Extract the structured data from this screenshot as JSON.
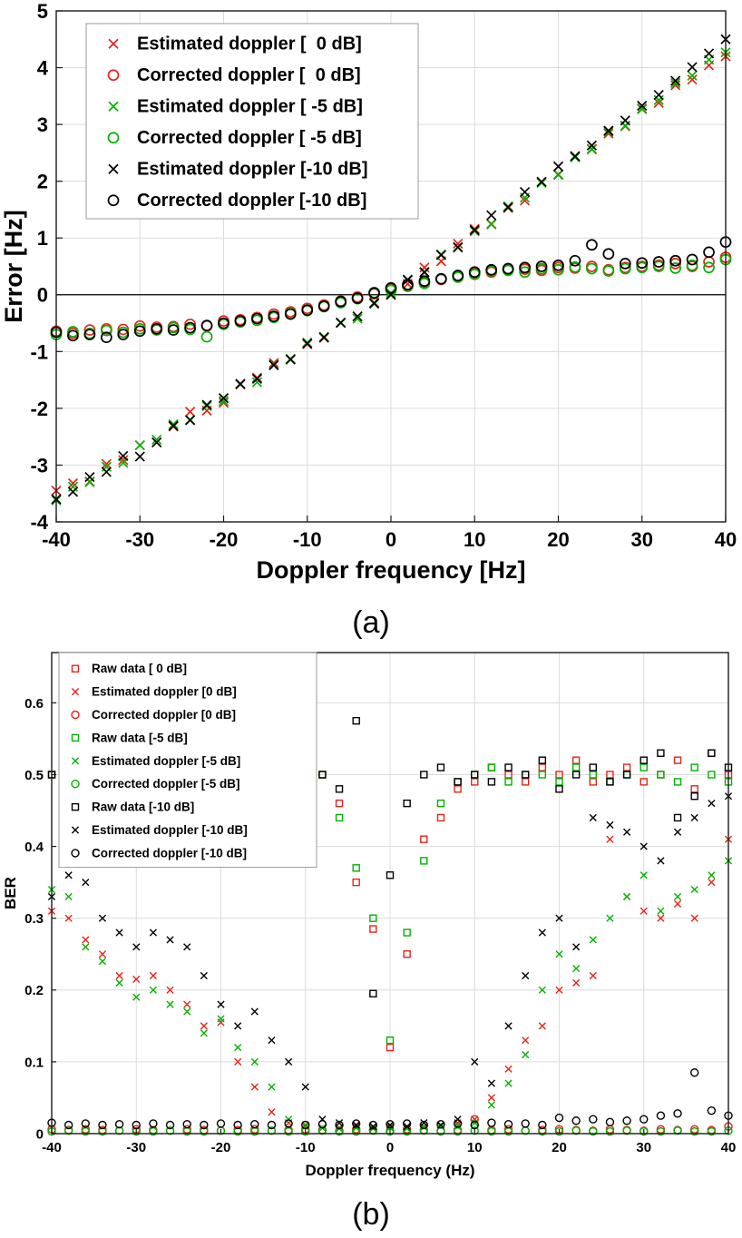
{
  "figure": {
    "caption_a": "(a)",
    "caption_b": "(b)"
  },
  "colors": {
    "red": "#e8231a",
    "green": "#00b300",
    "black": "#000000",
    "grid": "#dcdcdc"
  },
  "chart_data": [
    {
      "type": "scatter",
      "panel": "a",
      "title": "",
      "xlabel": "Doppler frequency [Hz]",
      "ylabel": "Error [Hz]",
      "xlim": [
        -40,
        40
      ],
      "ylim": [
        -4,
        5
      ],
      "xticks": [
        -40,
        -30,
        -20,
        -10,
        0,
        10,
        20,
        30,
        40
      ],
      "yticks": [
        5,
        4,
        3,
        2,
        1,
        0,
        -1,
        -2,
        -3,
        -4
      ],
      "grid": true,
      "zero_line": true,
      "legend_position": "top-left",
      "x": [
        -40,
        -38,
        -36,
        -34,
        -32,
        -30,
        -28,
        -26,
        -24,
        -22,
        -20,
        -18,
        -16,
        -14,
        -12,
        -10,
        -8,
        -6,
        -4,
        -2,
        0,
        2,
        4,
        6,
        8,
        10,
        12,
        14,
        16,
        18,
        20,
        22,
        24,
        26,
        28,
        30,
        32,
        34,
        36,
        38,
        40
      ],
      "series": [
        {
          "name": "Estimated doppler [  0 dB]",
          "color": "red",
          "marker": "x",
          "values": [
            -3.45,
            -3.32,
            -3.29,
            -2.98,
            -2.91,
            -2.65,
            -2.6,
            -2.32,
            -2.06,
            -2.04,
            -1.9,
            -1.58,
            -1.46,
            -1.2,
            -1.13,
            -0.87,
            -0.76,
            -0.49,
            -0.38,
            -0.14,
            0,
            0.19,
            0.48,
            0.59,
            0.9,
            1.16,
            1.25,
            1.53,
            1.66,
            1.99,
            2.12,
            2.44,
            2.57,
            2.84,
            2.97,
            3.28,
            3.38,
            3.69,
            3.79,
            4.04,
            4.2
          ]
        },
        {
          "name": "Corrected doppler [  0 dB]",
          "color": "red",
          "marker": "o",
          "values": [
            -0.64,
            -0.68,
            -0.62,
            -0.6,
            -0.61,
            -0.55,
            -0.57,
            -0.56,
            -0.52,
            -0.55,
            -0.46,
            -0.44,
            -0.4,
            -0.34,
            -0.3,
            -0.24,
            -0.18,
            -0.11,
            -0.04,
            0.02,
            0.1,
            0.15,
            0.22,
            0.27,
            0.33,
            0.38,
            0.4,
            0.44,
            0.45,
            0.43,
            0.48,
            0.47,
            0.5,
            0.44,
            0.48,
            0.5,
            0.52,
            0.55,
            0.5,
            0.58,
            0.66
          ]
        },
        {
          "name": "Estimated doppler [ -5 dB]",
          "color": "green",
          "marker": "x",
          "values": [
            -3.62,
            -3.38,
            -3.3,
            -3.03,
            -2.96,
            -2.65,
            -2.55,
            -2.28,
            -2.2,
            -1.96,
            -1.87,
            -1.57,
            -1.54,
            -1.23,
            -1.13,
            -0.84,
            -0.74,
            -0.5,
            -0.42,
            -0.16,
            0.03,
            0.27,
            0.39,
            0.71,
            0.83,
            1.12,
            1.24,
            1.56,
            1.71,
            1.97,
            2.11,
            2.42,
            2.56,
            2.87,
            2.98,
            3.27,
            3.43,
            3.73,
            3.86,
            4.14,
            4.27
          ]
        },
        {
          "name": "Corrected doppler [ -5 dB]",
          "color": "green",
          "marker": "o",
          "values": [
            -0.7,
            -0.65,
            -0.68,
            -0.63,
            -0.66,
            -0.6,
            -0.62,
            -0.58,
            -0.61,
            -0.74,
            -0.52,
            -0.48,
            -0.45,
            -0.4,
            -0.33,
            -0.28,
            -0.21,
            -0.14,
            -0.07,
            0.04,
            0.08,
            0.16,
            0.2,
            0.28,
            0.31,
            0.36,
            0.42,
            0.43,
            0.4,
            0.46,
            0.44,
            0.49,
            0.46,
            0.42,
            0.46,
            0.48,
            0.5,
            0.47,
            0.52,
            0.48,
            0.62
          ]
        },
        {
          "name": "Estimated doppler [-10 dB]",
          "color": "black",
          "marker": "x",
          "values": [
            -3.6,
            -3.47,
            -3.21,
            -3.12,
            -2.84,
            -2.85,
            -2.6,
            -2.31,
            -2.21,
            -1.94,
            -1.82,
            -1.57,
            -1.48,
            -1.24,
            -1.14,
            -0.86,
            -0.75,
            -0.49,
            -0.38,
            -0.15,
            0,
            0.26,
            0.4,
            0.7,
            0.84,
            1.14,
            1.4,
            1.54,
            1.81,
            1.99,
            2.26,
            2.44,
            2.63,
            2.89,
            3.07,
            3.33,
            3.52,
            3.77,
            4.01,
            4.25,
            4.5
          ]
        },
        {
          "name": "Corrected doppler [-10 dB]",
          "color": "black",
          "marker": "o",
          "values": [
            -0.66,
            -0.72,
            -0.7,
            -0.75,
            -0.7,
            -0.64,
            -0.6,
            -0.62,
            -0.58,
            -0.54,
            -0.5,
            -0.46,
            -0.42,
            -0.38,
            -0.34,
            -0.27,
            -0.2,
            -0.12,
            -0.06,
            0.03,
            0.12,
            0.18,
            0.24,
            0.28,
            0.34,
            0.4,
            0.44,
            0.46,
            0.48,
            0.5,
            0.52,
            0.6,
            0.88,
            0.72,
            0.55,
            0.56,
            0.58,
            0.6,
            0.62,
            0.75,
            0.93
          ]
        }
      ]
    },
    {
      "type": "scatter",
      "panel": "b",
      "title": "",
      "xlabel": "Doppler frequency (Hz)",
      "ylabel": "BER",
      "xlim": [
        -40,
        40
      ],
      "ylim": [
        0,
        0.67
      ],
      "xticks": [
        -40,
        -30,
        -20,
        -10,
        0,
        10,
        20,
        30,
        40
      ],
      "yticks": [
        0,
        0.1,
        0.2,
        0.3,
        0.4,
        0.5,
        0.6
      ],
      "grid": true,
      "zero_line": false,
      "legend_position": "top-left",
      "x": [
        -40,
        -38,
        -36,
        -34,
        -32,
        -30,
        -28,
        -26,
        -24,
        -22,
        -20,
        -18,
        -16,
        -14,
        -12,
        -10,
        -8,
        -6,
        -4,
        -2,
        0,
        2,
        4,
        6,
        8,
        10,
        12,
        14,
        16,
        18,
        20,
        22,
        24,
        26,
        28,
        30,
        32,
        34,
        36,
        38,
        40
      ],
      "series": [
        {
          "name": "Raw data [ 0 dB]",
          "color": "red",
          "marker": "square",
          "values": [
            0.5,
            0.51,
            0.49,
            0.5,
            0.52,
            0.5,
            0.49,
            0.51,
            0.5,
            0.5,
            0.52,
            0.49,
            0.5,
            0.51,
            0.5,
            0.51,
            0.5,
            0.46,
            0.35,
            0.285,
            0.12,
            0.25,
            0.41,
            0.44,
            0.48,
            0.49,
            0.51,
            0.5,
            0.49,
            0.51,
            0.5,
            0.52,
            0.49,
            0.5,
            0.51,
            0.49,
            0.5,
            0.52,
            0.48,
            0.53,
            0.5
          ]
        },
        {
          "name": "Estimated doppler [0 dB]",
          "color": "red",
          "marker": "x",
          "values": [
            0.31,
            0.3,
            0.27,
            0.25,
            0.22,
            0.215,
            0.22,
            0.2,
            0.18,
            0.15,
            0.155,
            0.1,
            0.065,
            0.03,
            0.015,
            0.01,
            0.008,
            0.008,
            0.01,
            0.008,
            0.01,
            0.008,
            0.01,
            0.012,
            0.015,
            0.02,
            0.05,
            0.09,
            0.13,
            0.15,
            0.2,
            0.21,
            0.22,
            0.41,
            0.33,
            0.31,
            0.3,
            0.32,
            0.3,
            0.35,
            0.41
          ]
        },
        {
          "name": "Corrected doppler [0 dB]",
          "color": "red",
          "marker": "o",
          "values": [
            0.006,
            0.005,
            0.006,
            0.005,
            0.004,
            0.006,
            0.005,
            0.004,
            0.006,
            0.005,
            0.004,
            0.005,
            0.006,
            0.004,
            0.005,
            0.006,
            0.005,
            0.004,
            0.006,
            0.005,
            0.004,
            0.006,
            0.005,
            0.004,
            0.005,
            0.02,
            0.005,
            0.006,
            0.004,
            0.005,
            0.006,
            0.005,
            0.004,
            0.006,
            0.005,
            0.004,
            0.006,
            0.005,
            0.006,
            0.005,
            0.01
          ]
        },
        {
          "name": "Raw data [-5 dB]",
          "color": "green",
          "marker": "square",
          "values": [
            0.5,
            0.49,
            0.51,
            0.5,
            0.49,
            0.52,
            0.5,
            0.51,
            0.49,
            0.5,
            0.51,
            0.5,
            0.49,
            0.5,
            0.51,
            0.49,
            0.5,
            0.44,
            0.37,
            0.3,
            0.13,
            0.28,
            0.38,
            0.46,
            0.49,
            0.5,
            0.51,
            0.49,
            0.5,
            0.5,
            0.49,
            0.51,
            0.5,
            0.49,
            0.5,
            0.51,
            0.5,
            0.49,
            0.51,
            0.5,
            0.49
          ]
        },
        {
          "name": "Estimated doppler [-5 dB]",
          "color": "green",
          "marker": "x",
          "values": [
            0.34,
            0.33,
            0.26,
            0.24,
            0.21,
            0.19,
            0.2,
            0.18,
            0.17,
            0.14,
            0.16,
            0.12,
            0.1,
            0.065,
            0.02,
            0.012,
            0.008,
            0.007,
            0.008,
            0.007,
            0.008,
            0.007,
            0.009,
            0.01,
            0.012,
            0.015,
            0.04,
            0.07,
            0.11,
            0.2,
            0.25,
            0.23,
            0.27,
            0.3,
            0.33,
            0.36,
            0.31,
            0.33,
            0.34,
            0.36,
            0.38
          ]
        },
        {
          "name": "Corrected doppler [-5 dB]",
          "color": "green",
          "marker": "o",
          "values": [
            0.003,
            0.004,
            0.003,
            0.003,
            0.004,
            0.003,
            0.003,
            0.004,
            0.003,
            0.003,
            0.004,
            0.003,
            0.003,
            0.004,
            0.003,
            0.003,
            0.004,
            0.003,
            0.003,
            0.004,
            0.003,
            0.003,
            0.004,
            0.003,
            0.003,
            0.004,
            0.003,
            0.003,
            0.004,
            0.003,
            0.003,
            0.004,
            0.003,
            0.003,
            0.004,
            0.003,
            0.003,
            0.004,
            0.003,
            0.003,
            0.004
          ]
        },
        {
          "name": "Raw data [-10 dB]",
          "color": "black",
          "marker": "square",
          "values": [
            0.5,
            0.51,
            0.5,
            0.49,
            0.5,
            0.51,
            0.52,
            0.5,
            0.49,
            0.51,
            0.5,
            0.49,
            0.5,
            0.52,
            0.49,
            0.48,
            0.5,
            0.48,
            0.575,
            0.195,
            0.36,
            0.46,
            0.5,
            0.51,
            0.49,
            0.5,
            0.49,
            0.51,
            0.5,
            0.52,
            0.48,
            0.5,
            0.51,
            0.49,
            0.5,
            0.52,
            0.53,
            0.44,
            0.47,
            0.53,
            0.51
          ]
        },
        {
          "name": "Estimated doppler [-10 dB]",
          "color": "black",
          "marker": "x",
          "values": [
            0.33,
            0.36,
            0.35,
            0.3,
            0.28,
            0.26,
            0.28,
            0.27,
            0.26,
            0.22,
            0.18,
            0.15,
            0.17,
            0.13,
            0.1,
            0.065,
            0.02,
            0.015,
            0.012,
            0.01,
            0.012,
            0.01,
            0.015,
            0.012,
            0.02,
            0.1,
            0.07,
            0.15,
            0.22,
            0.28,
            0.3,
            0.26,
            0.44,
            0.43,
            0.42,
            0.4,
            0.38,
            0.42,
            0.44,
            0.46,
            0.47
          ]
        },
        {
          "name": "Corrected doppler [-10 dB]",
          "color": "black",
          "marker": "o",
          "values": [
            0.015,
            0.012,
            0.014,
            0.012,
            0.013,
            0.012,
            0.014,
            0.012,
            0.013,
            0.012,
            0.014,
            0.012,
            0.013,
            0.012,
            0.014,
            0.012,
            0.013,
            0.012,
            0.014,
            0.012,
            0.013,
            0.014,
            0.012,
            0.013,
            0.014,
            0.012,
            0.015,
            0.013,
            0.014,
            0.012,
            0.022,
            0.018,
            0.02,
            0.016,
            0.018,
            0.02,
            0.025,
            0.028,
            0.085,
            0.032,
            0.025
          ]
        }
      ]
    }
  ]
}
